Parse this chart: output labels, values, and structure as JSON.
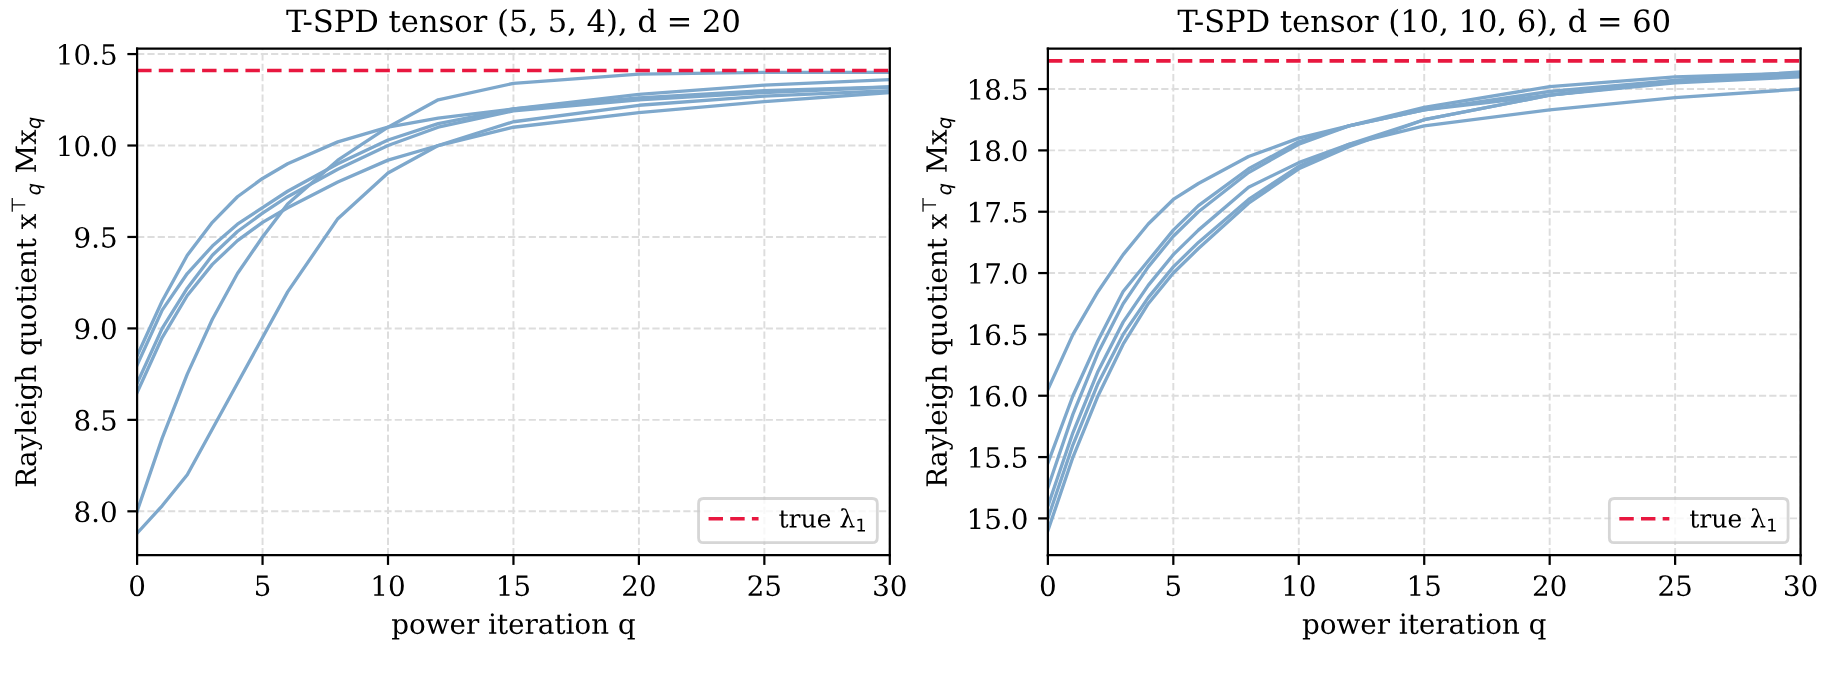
{
  "chart_data": [
    {
      "type": "line",
      "title": "T-SPD tensor (5, 5, 4), d = 20",
      "xlabel": "power iteration q",
      "ylabel": "Rayleigh quotient x$^{⊤}$$_{q}$ Mx$_{q}$",
      "x": [
        0,
        1,
        2,
        3,
        4,
        5,
        6,
        8,
        10,
        12,
        15,
        20,
        25,
        30
      ],
      "series": [
        {
          "color": "#7ea8cc",
          "values": [
            7.88,
            8.03,
            8.2,
            8.45,
            8.7,
            8.95,
            9.2,
            9.6,
            9.85,
            10.0,
            10.13,
            10.22,
            10.27,
            10.3
          ]
        },
        {
          "color": "#7ea8cc",
          "values": [
            8.0,
            8.4,
            8.75,
            9.05,
            9.3,
            9.5,
            9.68,
            9.92,
            10.1,
            10.25,
            10.34,
            10.39,
            10.4,
            10.4
          ]
        },
        {
          "color": "#7ea8cc",
          "values": [
            8.85,
            9.15,
            9.4,
            9.58,
            9.72,
            9.82,
            9.9,
            10.02,
            10.1,
            10.15,
            10.2,
            10.26,
            10.3,
            10.32
          ]
        },
        {
          "color": "#7ea8cc",
          "values": [
            8.8,
            9.1,
            9.3,
            9.45,
            9.57,
            9.66,
            9.75,
            9.9,
            10.03,
            10.12,
            10.2,
            10.28,
            10.33,
            10.36
          ]
        },
        {
          "color": "#7ea8cc",
          "values": [
            8.7,
            9.0,
            9.22,
            9.4,
            9.53,
            9.63,
            9.72,
            9.87,
            10.0,
            10.1,
            10.19,
            10.25,
            10.29,
            10.32
          ]
        },
        {
          "color": "#7ea8cc",
          "values": [
            8.65,
            8.95,
            9.18,
            9.35,
            9.48,
            9.58,
            9.66,
            9.8,
            9.92,
            10.0,
            10.1,
            10.18,
            10.24,
            10.29
          ]
        }
      ],
      "ref_lines": [
        {
          "axis": "y",
          "value": 10.41,
          "label": "true λ$_{1}$",
          "color": "#e8173f",
          "line_style": "dashed"
        }
      ],
      "xlim": [
        0,
        30
      ],
      "xticks": [
        0,
        5,
        10,
        15,
        20,
        25,
        30
      ],
      "ylim": [
        7.76,
        10.53
      ],
      "yticks": [
        {
          "value": 8,
          "label": "8.0"
        },
        8.5,
        {
          "value": 9,
          "label": "9.0"
        },
        9.5,
        {
          "value": 10,
          "label": "10.0"
        },
        10.5
      ],
      "grid": true,
      "legend": "bottom right"
    },
    {
      "type": "line",
      "title": "T-SPD tensor (10, 10, 6), d = 60",
      "xlabel": "power iteration q",
      "ylabel": "Rayleigh quotient x$^{⊤}$$_{q}$ Mx$_{q}$",
      "x": [
        0,
        1,
        2,
        3,
        4,
        5,
        6,
        8,
        10,
        12,
        15,
        20,
        25,
        30
      ],
      "series": [
        {
          "color": "#7ea8cc",
          "values": [
            16.05,
            16.5,
            16.85,
            17.15,
            17.4,
            17.6,
            17.73,
            17.95,
            18.1,
            18.2,
            18.35,
            18.52,
            18.6,
            18.63
          ]
        },
        {
          "color": "#7ea8cc",
          "values": [
            15.45,
            16.0,
            16.45,
            16.85,
            17.1,
            17.35,
            17.55,
            17.85,
            18.07,
            18.2,
            18.33,
            18.45,
            18.55,
            18.6
          ]
        },
        {
          "color": "#7ea8cc",
          "values": [
            15.25,
            15.85,
            16.35,
            16.75,
            17.05,
            17.3,
            17.5,
            17.82,
            18.05,
            18.2,
            18.33,
            18.48,
            18.57,
            18.62
          ]
        },
        {
          "color": "#7ea8cc",
          "values": [
            15.1,
            15.7,
            16.2,
            16.6,
            16.9,
            17.15,
            17.35,
            17.7,
            17.9,
            18.05,
            18.2,
            18.33,
            18.43,
            18.5
          ]
        },
        {
          "color": "#7ea8cc",
          "values": [
            15.0,
            15.6,
            16.1,
            16.5,
            16.8,
            17.05,
            17.25,
            17.6,
            17.87,
            18.05,
            18.25,
            18.45,
            18.57,
            18.64
          ]
        },
        {
          "color": "#7ea8cc",
          "values": [
            14.9,
            15.5,
            16.0,
            16.42,
            16.75,
            17.0,
            17.2,
            17.57,
            17.85,
            18.03,
            18.25,
            18.45,
            18.56,
            18.62
          ]
        }
      ],
      "ref_lines": [
        {
          "axis": "y",
          "value": 18.73,
          "label": "true λ$_{1}$",
          "color": "#e8173f",
          "line_style": "dashed"
        }
      ],
      "xlim": [
        0,
        30
      ],
      "xticks": [
        0,
        5,
        10,
        15,
        20,
        25,
        30
      ],
      "ylim": [
        14.7,
        18.83
      ],
      "yticks": [
        {
          "value": 15,
          "label": "15.0"
        },
        15.5,
        {
          "value": 16,
          "label": "16.0"
        },
        16.5,
        {
          "value": 17,
          "label": "17.0"
        },
        17.5,
        {
          "value": 18,
          "label": "18.0"
        },
        18.5
      ],
      "grid": true,
      "legend": "bottom right"
    }
  ]
}
